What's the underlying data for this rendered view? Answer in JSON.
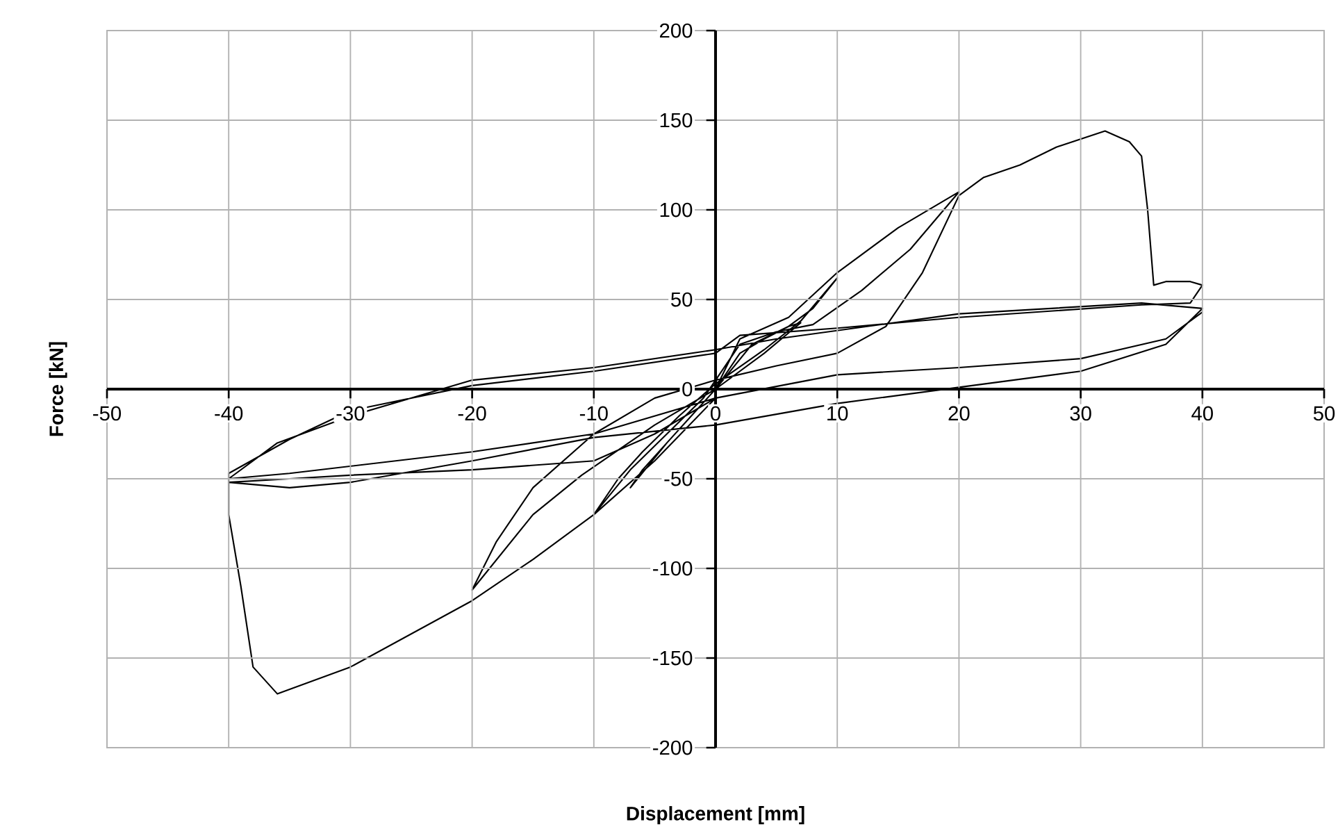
{
  "chart_data": {
    "type": "line",
    "xlabel": "Displacement [mm]",
    "ylabel": "Force [kN]",
    "xlim": [
      -50,
      50
    ],
    "ylim": [
      -200,
      200
    ],
    "xticks": [
      -50,
      -40,
      -30,
      -20,
      -10,
      0,
      10,
      20,
      30,
      40,
      50
    ],
    "yticks": [
      -200,
      -150,
      -100,
      -50,
      0,
      50,
      100,
      150,
      200
    ],
    "grid": true,
    "marker": "none",
    "line_style": "solid",
    "series": [
      {
        "color": "#000000",
        "x": [
          0,
          2,
          4,
          6,
          7,
          4,
          0,
          -2,
          -4,
          -6,
          -7,
          -4,
          0,
          3,
          6,
          8,
          10,
          7,
          4,
          0,
          -3,
          -6,
          -8,
          -10,
          -7,
          -4,
          -1,
          0,
          2,
          5,
          8,
          12,
          16,
          20,
          15,
          10,
          6,
          2,
          0,
          -5,
          -11,
          -15,
          -20,
          -18,
          -15,
          -10,
          -5,
          0,
          5,
          10,
          14,
          17,
          20,
          22,
          25,
          28,
          32,
          34,
          35,
          35.5,
          36,
          37,
          39,
          40,
          39,
          35,
          20,
          10,
          2,
          0,
          -10,
          -20,
          -30,
          -35,
          -40,
          -40,
          -39.5,
          -39,
          -38,
          -36,
          -30,
          -20,
          -15,
          -10,
          -5,
          0,
          -5,
          -10,
          -20,
          -30,
          -35,
          -40,
          -35,
          -30,
          -20,
          -10,
          0,
          10,
          20,
          30,
          37,
          40,
          35,
          20,
          5,
          0,
          -10,
          -20,
          -30,
          -36,
          -40,
          -35,
          -20,
          -10,
          0,
          10,
          20,
          30,
          37,
          40
        ],
        "values": [
          0,
          20,
          28,
          35,
          37,
          20,
          0,
          -15,
          -30,
          -45,
          -55,
          -30,
          0,
          25,
          35,
          45,
          62,
          38,
          22,
          3,
          -15,
          -35,
          -50,
          -70,
          -45,
          -25,
          -5,
          5,
          25,
          32,
          36,
          55,
          78,
          110,
          90,
          65,
          40,
          28,
          0,
          -20,
          -48,
          -70,
          -112,
          -85,
          -55,
          -25,
          -5,
          5,
          13,
          20,
          35,
          65,
          108,
          118,
          125,
          135,
          144,
          138,
          130,
          100,
          58,
          60,
          60,
          58,
          48,
          47,
          40,
          34,
          30,
          20,
          10,
          2,
          -12,
          -28,
          -47,
          -70,
          -90,
          -110,
          -155,
          -170,
          -155,
          -118,
          -95,
          -70,
          -40,
          -5,
          -25,
          -40,
          -45,
          -48,
          -50,
          -52,
          -55,
          -52,
          -40,
          -27,
          -20,
          -8,
          1,
          10,
          25,
          45,
          48,
          42,
          28,
          22,
          12,
          5,
          -15,
          -30,
          -50,
          -47,
          -35,
          -25,
          -5,
          8,
          12,
          17,
          28,
          43
        ]
      }
    ]
  }
}
